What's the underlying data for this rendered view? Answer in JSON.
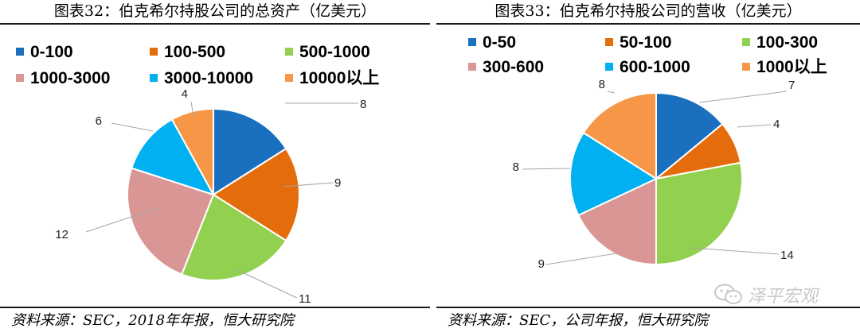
{
  "chart_data": [
    {
      "type": "pie",
      "title": "图表32：伯克希尔持股公司的总资产（亿美元）",
      "source": "资料来源：SEC，2018年年报，恒大研究院",
      "slices": [
        {
          "label": "0-100",
          "value": 8,
          "color": "#1a6fbf"
        },
        {
          "label": "100-500",
          "value": 9,
          "color": "#e46c0a"
        },
        {
          "label": "500-1000",
          "value": 11,
          "color": "#92d050"
        },
        {
          "label": "1000-3000",
          "value": 12,
          "color": "#d99694"
        },
        {
          "label": "3000-10000",
          "value": 6,
          "color": "#00b0f0"
        },
        {
          "label": "10000以上",
          "value": 4,
          "color": "#f79646"
        }
      ],
      "legend": "top"
    },
    {
      "type": "pie",
      "title": "图表33：伯克希尔持股公司的营收（亿美元）",
      "source": "资料来源：SEC，公司年报，恒大研究院",
      "slices": [
        {
          "label": "0-50",
          "value": 7,
          "color": "#1a6fbf"
        },
        {
          "label": "50-100",
          "value": 4,
          "color": "#e46c0a"
        },
        {
          "label": "100-300",
          "value": 14,
          "color": "#92d050"
        },
        {
          "label": "300-600",
          "value": 9,
          "color": "#d99694"
        },
        {
          "label": "600-1000",
          "value": 8,
          "color": "#00b0f0"
        },
        {
          "label": "1000以上",
          "value": 8,
          "color": "#f79646"
        }
      ],
      "legend": "top"
    }
  ],
  "watermark": {
    "text": "泽平宏观",
    "icon": "wechat-icon"
  }
}
